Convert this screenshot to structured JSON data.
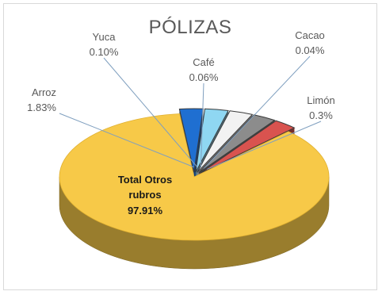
{
  "chart_data": {
    "type": "pie",
    "title": "PÓLIZAS",
    "slices": [
      {
        "name": "Arroz",
        "value": 1.83,
        "label": "1.83%",
        "color": "#1f6fd1"
      },
      {
        "name": "Yuca",
        "value": 0.1,
        "label": "0.10%",
        "color": "#8fd7f2"
      },
      {
        "name": "Café",
        "value": 0.06,
        "label": "0.06%",
        "color": "#f2f2f2"
      },
      {
        "name": "Cacao",
        "value": 0.04,
        "label": "0.04%",
        "color": "#8c8c8c"
      },
      {
        "name": "Limón",
        "value": 0.3,
        "label": "0.3%",
        "color": "#d9534f"
      },
      {
        "name": "Total Otros rubros",
        "value": 97.91,
        "label": "97.91%",
        "color": "#f7c948"
      }
    ],
    "legend": "none",
    "style": "3d-exploded"
  }
}
